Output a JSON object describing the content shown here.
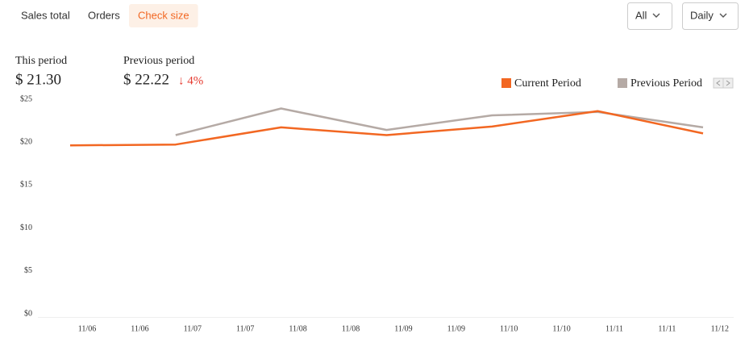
{
  "tabs": [
    "Sales total",
    "Orders",
    "Check size"
  ],
  "active_tab": 2,
  "filters": [
    "All",
    "Daily"
  ],
  "summary": {
    "this_period_label": "This period",
    "this_period_value": "$ 21.30",
    "previous_period_label": "Previous period",
    "previous_period_value": "$ 22.22",
    "change": "↓ 4%"
  },
  "chart_data": {
    "type": "line",
    "x_labels": [
      "11/06",
      "11/06",
      "11/07",
      "11/07",
      "11/08",
      "11/08",
      "11/09",
      "11/09",
      "11/10",
      "11/10",
      "11/11",
      "11/11",
      "11/12"
    ],
    "ylim": [
      0,
      25
    ],
    "yticks": [
      {
        "value": 0,
        "label": "$0"
      },
      {
        "value": 5,
        "label": "$5"
      },
      {
        "value": 10,
        "label": "$10"
      },
      {
        "value": 15,
        "label": "$15"
      },
      {
        "value": 20,
        "label": "$20"
      },
      {
        "value": 25,
        "label": "$25"
      }
    ],
    "series": [
      {
        "name": "Current Period",
        "color": "#f26722",
        "values": [
          19.9,
          20.0,
          22.0,
          21.1,
          22.1,
          23.9,
          21.3
        ]
      },
      {
        "name": "Previous Period",
        "color": "#b5aaa5",
        "values": [
          null,
          21.1,
          24.2,
          21.7,
          23.4,
          23.8,
          22.0
        ]
      }
    ]
  }
}
